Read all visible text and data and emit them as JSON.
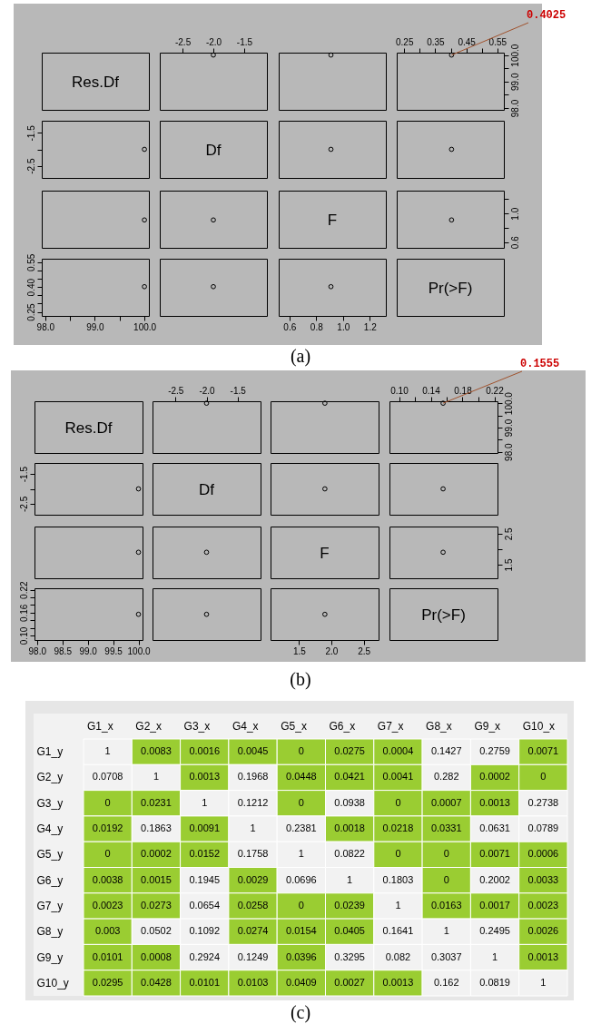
{
  "chart_data": [
    {
      "type": "other",
      "title": "Res.Df"
    },
    {
      "type": "scatter",
      "marker": "circle",
      "color": "#000000",
      "x": [
        -2
      ],
      "values": [
        100
      ],
      "xlim": [
        -2.87,
        -1.13
      ],
      "ylim": [
        97.93,
        100.09
      ],
      "xticks": [
        {
          "value": -2.5,
          "label": "-2.5"
        },
        {
          "value": -2,
          "label": "-2.0"
        },
        {
          "value": -1.5,
          "label": "-1.5"
        }
      ],
      "tick_labels": "x"
    },
    {
      "type": "scatter",
      "marker": "circle",
      "color": "#000000",
      "x": [
        0.91
      ],
      "values": [
        100
      ],
      "xlim": [
        0.52,
        1.32
      ],
      "ylim": [
        97.93,
        100.09
      ],
      "tick_labels": false
    },
    {
      "type": "scatter",
      "marker": "circle",
      "color": "#000000",
      "x": [
        0.4025
      ],
      "values": [
        100
      ],
      "xlim": [
        0.226,
        0.571
      ],
      "ylim": [
        97.93,
        100.09
      ],
      "xticks": [
        {
          "value": 0.25,
          "label": "0.25"
        },
        {
          "value": 0.3,
          "label": null
        },
        {
          "value": 0.35,
          "label": "0.35"
        },
        {
          "value": 0.4,
          "label": null
        },
        {
          "value": 0.45,
          "label": "0.45"
        },
        {
          "value": 0.5,
          "label": null
        },
        {
          "value": 0.55,
          "label": "0.55"
        }
      ],
      "yticks": [
        {
          "value": 98,
          "label": "98.0"
        },
        {
          "value": 98.5,
          "label": null
        },
        {
          "value": 99,
          "label": "99.0"
        },
        {
          "value": 99.5,
          "label": null
        },
        {
          "value": 100,
          "label": "100.0"
        }
      ],
      "annotations": [
        {
          "text": "0.4025",
          "x": 0.4025,
          "y": 100
        }
      ]
    },
    {
      "type": "scatter",
      "marker": "circle",
      "color": "#000000",
      "x": [
        100
      ],
      "values": [
        -2
      ],
      "xlim": [
        97.93,
        100.09
      ],
      "ylim": [
        -2.87,
        -1.13
      ],
      "yticks": [
        {
          "value": -2.5,
          "label": "-2.5"
        },
        {
          "value": -2,
          "label": null
        },
        {
          "value": -1.5,
          "label": "-1.5"
        }
      ],
      "tick_labels": "y"
    },
    {
      "type": "other",
      "title": "Df"
    },
    {
      "type": "scatter",
      "marker": "circle",
      "color": "#000000",
      "x": [
        0.91
      ],
      "values": [
        -2
      ],
      "xlim": [
        0.52,
        1.32
      ],
      "ylim": [
        -2.87,
        -1.13
      ],
      "tick_labels": false
    },
    {
      "type": "scatter",
      "marker": "circle",
      "color": "#000000",
      "x": [
        0.4025
      ],
      "values": [
        -2
      ],
      "xlim": [
        0.226,
        0.571
      ],
      "ylim": [
        -2.87,
        -1.13
      ],
      "tick_labels": false
    },
    {
      "type": "scatter",
      "marker": "circle",
      "color": "#000000",
      "x": [
        100
      ],
      "values": [
        0.91
      ],
      "xlim": [
        97.93,
        100.09
      ],
      "ylim": [
        0.52,
        1.32
      ],
      "tick_labels": false
    },
    {
      "type": "scatter",
      "marker": "circle",
      "color": "#000000",
      "x": [
        -2
      ],
      "values": [
        0.91
      ],
      "xlim": [
        -2.87,
        -1.13
      ],
      "ylim": [
        0.52,
        1.32
      ],
      "tick_labels": false
    },
    {
      "type": "other",
      "title": "F"
    },
    {
      "type": "scatter",
      "marker": "circle",
      "color": "#000000",
      "x": [
        0.4025
      ],
      "values": [
        0.91
      ],
      "xlim": [
        0.226,
        0.571
      ],
      "ylim": [
        0.52,
        1.32
      ],
      "yticks": [
        {
          "value": 0.6,
          "label": "0.6"
        },
        {
          "value": 0.8,
          "label": null
        },
        {
          "value": 1,
          "label": "1.0"
        },
        {
          "value": 1.2,
          "label": null
        }
      ],
      "tick_labels": "y"
    },
    {
      "type": "scatter",
      "marker": "circle",
      "color": "#000000",
      "x": [
        100
      ],
      "values": [
        0.4025
      ],
      "xlim": [
        97.93,
        100.09
      ],
      "ylim": [
        0.226,
        0.571
      ],
      "xticks": [
        {
          "value": 98,
          "label": "98.0"
        },
        {
          "value": 98.5,
          "label": null
        },
        {
          "value": 99,
          "label": "99.0"
        },
        {
          "value": 99.5,
          "label": null
        },
        {
          "value": 100,
          "label": "100.0"
        }
      ],
      "yticks": [
        {
          "value": 0.25,
          "label": "0.25"
        },
        {
          "value": 0.3,
          "label": null
        },
        {
          "value": 0.35,
          "label": null
        },
        {
          "value": 0.4,
          "label": "0.40"
        },
        {
          "value": 0.45,
          "label": null
        },
        {
          "value": 0.5,
          "label": null
        },
        {
          "value": 0.55,
          "label": "0.55"
        }
      ]
    },
    {
      "type": "scatter",
      "marker": "circle",
      "color": "#000000",
      "x": [
        -2
      ],
      "values": [
        0.4025
      ],
      "xlim": [
        -2.87,
        -1.13
      ],
      "ylim": [
        0.226,
        0.571
      ],
      "tick_labels": false
    },
    {
      "type": "scatter",
      "marker": "circle",
      "color": "#000000",
      "x": [
        0.91
      ],
      "values": [
        0.4025
      ],
      "xlim": [
        0.52,
        1.32
      ],
      "ylim": [
        0.226,
        0.571
      ],
      "xticks": [
        0.6,
        0.8,
        {
          "value": 1,
          "label": "1.0"
        },
        1.2
      ],
      "tick_labels": "x"
    },
    {
      "type": "other",
      "title": "Pr(>F)"
    },
    {
      "type": "other",
      "annotations": [
        "(a)"
      ]
    },
    {
      "type": "other",
      "title": "Res.Df"
    },
    {
      "type": "scatter",
      "marker": "circle",
      "color": "#000000",
      "x": [
        -2
      ],
      "values": [
        100
      ],
      "xlim": [
        -2.87,
        -1.13
      ],
      "ylim": [
        97.95,
        100.08
      ],
      "xticks": [
        {
          "value": -2.5,
          "label": "-2.5"
        },
        {
          "value": -2,
          "label": "-2.0"
        },
        {
          "value": -1.5,
          "label": "-1.5"
        }
      ],
      "tick_labels": "x"
    },
    {
      "type": "scatter",
      "marker": "circle",
      "color": "#000000",
      "x": [
        1.9
      ],
      "values": [
        100
      ],
      "xlim": [
        1.06,
        2.73
      ],
      "ylim": [
        97.95,
        100.08
      ],
      "tick_labels": false
    },
    {
      "type": "scatter",
      "marker": "circle",
      "color": "#000000",
      "x": [
        0.1555
      ],
      "values": [
        100
      ],
      "xlim": [
        0.088,
        0.224
      ],
      "ylim": [
        97.95,
        100.08
      ],
      "xticks": [
        {
          "value": 0.1,
          "label": "0.10"
        },
        {
          "value": 0.12,
          "label": null
        },
        {
          "value": 0.14,
          "label": "0.14"
        },
        {
          "value": 0.16,
          "label": null
        },
        {
          "value": 0.18,
          "label": "0.18"
        },
        {
          "value": 0.2,
          "label": null
        },
        {
          "value": 0.22,
          "label": "0.22"
        }
      ],
      "yticks": [
        {
          "value": 98,
          "label": "98.0"
        },
        {
          "value": 98.5,
          "label": null
        },
        {
          "value": 99,
          "label": "99.0"
        },
        {
          "value": 99.5,
          "label": null
        },
        {
          "value": 100,
          "label": "100.0"
        }
      ],
      "annotations": [
        {
          "text": "0.1555",
          "x": 0.1555,
          "y": 100
        }
      ]
    },
    {
      "type": "scatter",
      "marker": "circle",
      "color": "#000000",
      "x": [
        100
      ],
      "values": [
        -2
      ],
      "xlim": [
        97.95,
        100.08
      ],
      "ylim": [
        -2.87,
        -1.13
      ],
      "yticks": [
        {
          "value": -2.5,
          "label": "-2.5"
        },
        {
          "value": -2,
          "label": null
        },
        {
          "value": -1.5,
          "label": "-1.5"
        }
      ],
      "tick_labels": "y"
    },
    {
      "type": "other",
      "title": "Df"
    },
    {
      "type": "scatter",
      "marker": "circle",
      "color": "#000000",
      "x": [
        1.9
      ],
      "values": [
        -2
      ],
      "xlim": [
        1.06,
        2.73
      ],
      "ylim": [
        -2.87,
        -1.13
      ],
      "tick_labels": false
    },
    {
      "type": "scatter",
      "marker": "circle",
      "color": "#000000",
      "x": [
        0.1555
      ],
      "values": [
        -2
      ],
      "xlim": [
        0.088,
        0.224
      ],
      "ylim": [
        -2.87,
        -1.13
      ],
      "tick_labels": false
    },
    {
      "type": "scatter",
      "marker": "circle",
      "color": "#000000",
      "x": [
        100
      ],
      "values": [
        1.9
      ],
      "xlim": [
        97.95,
        100.08
      ],
      "ylim": [
        1.06,
        2.73
      ],
      "tick_labels": false
    },
    {
      "type": "scatter",
      "marker": "circle",
      "color": "#000000",
      "x": [
        -2
      ],
      "values": [
        1.9
      ],
      "xlim": [
        -2.87,
        -1.13
      ],
      "ylim": [
        1.06,
        2.73
      ],
      "tick_labels": false
    },
    {
      "type": "other",
      "title": "F"
    },
    {
      "type": "scatter",
      "marker": "circle",
      "color": "#000000",
      "x": [
        0.1555
      ],
      "values": [
        1.9
      ],
      "xlim": [
        0.088,
        0.224
      ],
      "ylim": [
        1.06,
        2.73
      ],
      "yticks": [
        1.5,
        {
          "value": 2,
          "label": null
        },
        2.5
      ],
      "tick_labels": "y"
    },
    {
      "type": "scatter",
      "marker": "circle",
      "color": "#000000",
      "x": [
        100
      ],
      "values": [
        0.1555
      ],
      "xlim": [
        97.95,
        100.08
      ],
      "ylim": [
        0.088,
        0.224
      ],
      "xticks": [
        {
          "value": 98,
          "label": "98.0"
        },
        98.5,
        {
          "value": 99,
          "label": "99.0"
        },
        99.5,
        {
          "value": 100,
          "label": "100.0"
        }
      ],
      "yticks": [
        {
          "value": 0.1,
          "label": "0.10"
        },
        {
          "value": 0.12,
          "label": null
        },
        {
          "value": 0.14,
          "label": null
        },
        {
          "value": 0.16,
          "label": "0.16"
        },
        {
          "value": 0.18,
          "label": null
        },
        {
          "value": 0.2,
          "label": null
        },
        {
          "value": 0.22,
          "label": "0.22"
        }
      ]
    },
    {
      "type": "scatter",
      "marker": "circle",
      "color": "#000000",
      "x": [
        -2
      ],
      "values": [
        0.1555
      ],
      "xlim": [
        -2.87,
        -1.13
      ],
      "ylim": [
        0.088,
        0.224
      ],
      "tick_labels": false
    },
    {
      "type": "scatter",
      "marker": "circle",
      "color": "#000000",
      "x": [
        1.9
      ],
      "values": [
        0.1555
      ],
      "xlim": [
        1.06,
        2.73
      ],
      "ylim": [
        0.088,
        0.224
      ],
      "xticks": [
        1.5,
        {
          "value": 2,
          "label": "2.0"
        },
        2.5
      ],
      "tick_labels": "x"
    },
    {
      "type": "other",
      "title": "Pr(>F)"
    },
    {
      "type": "other",
      "annotations": [
        "(b)"
      ]
    },
    {
      "type": "heatmap",
      "data_labels": true,
      "categories": [
        "G1_x",
        "G2_x",
        "G3_x",
        "G4_x",
        "G5_x",
        "G6_x",
        "G7_x",
        "G8_x",
        "G9_x",
        "G10_x"
      ],
      "y_categories": [
        "G1_y",
        "G2_y",
        "G3_y",
        "G4_y",
        "G5_y",
        "G6_y",
        "G7_y",
        "G8_y",
        "G9_y",
        "G10_y"
      ],
      "cells": [
        [
          1,
          0.0083,
          0.0016,
          0.0045,
          0,
          0.0275,
          0.0004,
          0.1427,
          0.2759,
          0.0071
        ],
        [
          0.0708,
          1,
          0.0013,
          0.1968,
          0.0448,
          0.0421,
          0.0041,
          0.282,
          0.0002,
          0
        ],
        [
          0,
          0.0231,
          1,
          0.1212,
          0,
          0.0938,
          0,
          0.0007,
          0.0013,
          0.2738
        ],
        [
          0.0192,
          0.1863,
          0.0091,
          1,
          0.2381,
          0.0018,
          0.0218,
          0.0331,
          0.0631,
          0.0789
        ],
        [
          0,
          0.0002,
          0.0152,
          0.1758,
          1,
          0.0822,
          0,
          0,
          0.0071,
          0.0006
        ],
        [
          0.0038,
          0.0015,
          0.1945,
          0.0029,
          0.0696,
          1,
          0.1803,
          0,
          0.2002,
          0.0033
        ],
        [
          0.0023,
          0.0273,
          0.0654,
          0.0258,
          0,
          0.0239,
          1,
          0.0163,
          0.0017,
          0.0023
        ],
        [
          0.003,
          0.0502,
          0.1092,
          0.0274,
          0.0154,
          0.0405,
          0.1641,
          1,
          0.2495,
          0.0026
        ],
        [
          0.0101,
          0.0008,
          0.2924,
          0.1249,
          0.0396,
          0.3295,
          0.082,
          0.3037,
          1,
          0.0013
        ],
        [
          0.0295,
          0.0428,
          0.0101,
          0.0103,
          0.0409,
          0.0027,
          0.0013,
          0.162,
          0.0819,
          1
        ]
      ],
      "colors": [
        [
          "#f2f2f2",
          "#9acd32",
          "#9acd32",
          "#9acd32",
          "#9acd32",
          "#9acd32",
          "#9acd32",
          "#f2f2f2",
          "#f2f2f2",
          "#9acd32"
        ],
        [
          "#f2f2f2",
          "#f2f2f2",
          "#9acd32",
          "#f2f2f2",
          "#9acd32",
          "#9acd32",
          "#9acd32",
          "#f2f2f2",
          "#9acd32",
          "#9acd32"
        ],
        [
          "#9acd32",
          "#9acd32",
          "#f2f2f2",
          "#f2f2f2",
          "#9acd32",
          "#f2f2f2",
          "#9acd32",
          "#9acd32",
          "#9acd32",
          "#f2f2f2"
        ],
        [
          "#9acd32",
          "#f2f2f2",
          "#9acd32",
          "#f2f2f2",
          "#f2f2f2",
          "#9acd32",
          "#9acd32",
          "#9acd32",
          "#f2f2f2",
          "#f2f2f2"
        ],
        [
          "#9acd32",
          "#9acd32",
          "#9acd32",
          "#f2f2f2",
          "#f2f2f2",
          "#f2f2f2",
          "#9acd32",
          "#9acd32",
          "#9acd32",
          "#9acd32"
        ],
        [
          "#9acd32",
          "#9acd32",
          "#f2f2f2",
          "#9acd32",
          "#f2f2f2",
          "#f2f2f2",
          "#f2f2f2",
          "#9acd32",
          "#f2f2f2",
          "#9acd32"
        ],
        [
          "#9acd32",
          "#9acd32",
          "#f2f2f2",
          "#9acd32",
          "#9acd32",
          "#9acd32",
          "#f2f2f2",
          "#9acd32",
          "#9acd32",
          "#9acd32"
        ],
        [
          "#9acd32",
          "#f2f2f2",
          "#f2f2f2",
          "#9acd32",
          "#9acd32",
          "#9acd32",
          "#f2f2f2",
          "#f2f2f2",
          "#f2f2f2",
          "#9acd32"
        ],
        [
          "#9acd32",
          "#9acd32",
          "#f2f2f2",
          "#f2f2f2",
          "#9acd32",
          "#f2f2f2",
          "#f2f2f2",
          "#f2f2f2",
          "#f2f2f2",
          "#9acd32"
        ],
        [
          "#9acd32",
          "#9acd32",
          "#9acd32",
          "#9acd32",
          "#9acd32",
          "#9acd32",
          "#9acd32",
          "#f2f2f2",
          "#f2f2f2",
          "#f2f2f2"
        ]
      ]
    },
    {
      "type": "other",
      "annotations": [
        "(c)"
      ]
    }
  ]
}
